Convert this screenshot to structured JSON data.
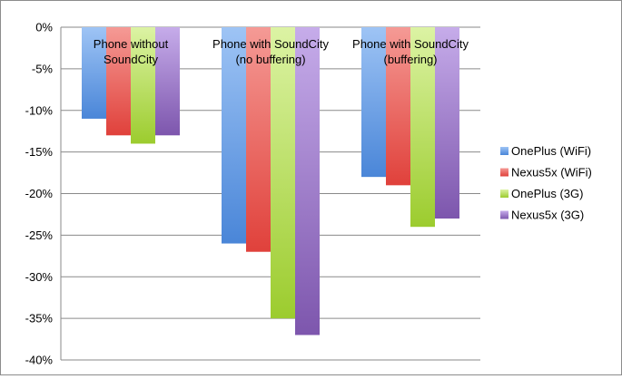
{
  "chart_data": {
    "type": "bar",
    "categories": [
      [
        "Phone without",
        "SoundCity"
      ],
      [
        "Phone with SoundCity",
        "(no buffering)"
      ],
      [
        "Phone with SoundCity",
        "(buffering)"
      ]
    ],
    "series": [
      {
        "name": "OnePlus (WiFi)",
        "values": [
          -11,
          -26,
          -18
        ],
        "color": "#4a86d8",
        "color_light": "#9ec4f5"
      },
      {
        "name": "Nexus5x (WiFi)",
        "values": [
          -13,
          -27,
          -19
        ],
        "color": "#e0413b",
        "color_light": "#f59a95"
      },
      {
        "name": "OnePlus (3G)",
        "values": [
          -14,
          -35,
          -24
        ],
        "color": "#9ccc2e",
        "color_light": "#dcf3a4"
      },
      {
        "name": "Nexus5x (3G)",
        "values": [
          -13,
          -37,
          -23
        ],
        "color": "#7d56ad",
        "color_light": "#c6acea"
      }
    ],
    "ylim": [
      -40,
      0
    ],
    "yticks": [
      0,
      -5,
      -10,
      -15,
      -20,
      -25,
      -30,
      -35,
      -40
    ],
    "ytick_labels": [
      "0%",
      "-5%",
      "-10%",
      "-15%",
      "-20%",
      "-25%",
      "-30%",
      "-35%",
      "-40%"
    ],
    "grid": true,
    "legend_position": "right",
    "title": "",
    "xlabel": "",
    "ylabel": ""
  }
}
